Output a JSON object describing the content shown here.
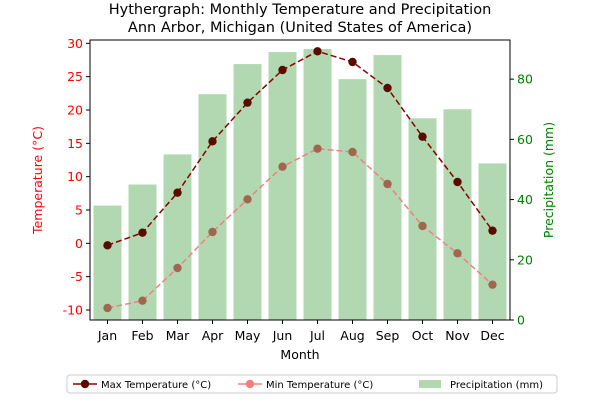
{
  "chart_data": {
    "type": "bar+line",
    "title_line1": "Hythergraph: Monthly Temperature and Precipitation",
    "title_line2": "Ann Arbor, Michigan (United States of America)",
    "xlabel": "Month",
    "ylabel_left": "Temperature (°C)",
    "ylabel_right": "Precipitation (mm)",
    "categories": [
      "Jan",
      "Feb",
      "Mar",
      "Apr",
      "May",
      "Jun",
      "Jul",
      "Aug",
      "Sep",
      "Oct",
      "Nov",
      "Dec"
    ],
    "left_axis": {
      "range": [
        -11.5,
        30.5
      ],
      "ticks": [
        -10,
        -5,
        0,
        5,
        10,
        15,
        20,
        25,
        30
      ],
      "color": "#ff0000"
    },
    "right_axis": {
      "range": [
        0,
        93
      ],
      "ticks": [
        0,
        20,
        40,
        60,
        80
      ],
      "color": "#008000"
    },
    "series": [
      {
        "name": "Max Temperature (°C)",
        "axis": "left",
        "kind": "line",
        "color": "#8b0000",
        "marker_color": "#5a0b00",
        "dash": "6 3",
        "values": [
          -0.3,
          1.6,
          7.6,
          15.3,
          21.1,
          26.0,
          28.8,
          27.2,
          23.3,
          16.0,
          9.2,
          1.9
        ]
      },
      {
        "name": "Min Temperature (°C)",
        "axis": "left",
        "kind": "line",
        "color": "#f08080",
        "marker_color": "#a0674e",
        "dash": "6 3",
        "values": [
          -9.7,
          -8.6,
          -3.7,
          1.7,
          6.6,
          11.5,
          14.2,
          13.7,
          8.9,
          2.6,
          -1.5,
          -6.2
        ]
      },
      {
        "name": "Precipitation (mm)",
        "axis": "right",
        "kind": "bar",
        "color": "#b2d8b2",
        "values": [
          38,
          45,
          55,
          75,
          85,
          89,
          90,
          80,
          88,
          67,
          70,
          52
        ]
      }
    ],
    "legend": {
      "placement": "bottom-center",
      "items": [
        "Max Temperature (°C)",
        "Min Temperature (°C)",
        "Precipitation (mm)"
      ]
    },
    "grid": false
  }
}
